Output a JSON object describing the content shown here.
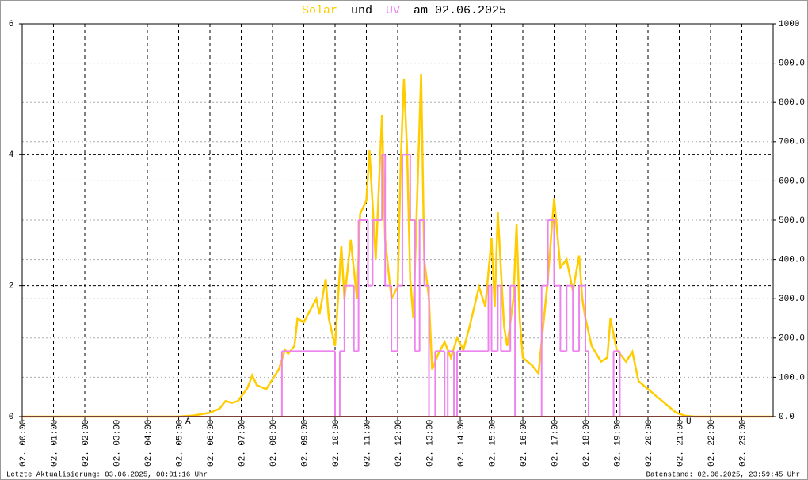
{
  "chart_data": {
    "type": "line",
    "title_join": "und",
    "title_suffix": "am 02.06.2025",
    "xlim": [
      0,
      24
    ],
    "xticks": [
      {
        "value": 0,
        "label": "02. 00:00"
      },
      {
        "value": 1,
        "label": "02. 01:00"
      },
      {
        "value": 2,
        "label": "02. 02:00"
      },
      {
        "value": 3,
        "label": "02. 03:00"
      },
      {
        "value": 4,
        "label": "02. 04:00"
      },
      {
        "value": 5,
        "label": "02. 05:00"
      },
      {
        "value": 6,
        "label": "02. 06:00"
      },
      {
        "value": 7,
        "label": "02. 07:00"
      },
      {
        "value": 8,
        "label": "02. 08:00"
      },
      {
        "value": 9,
        "label": "02. 09:00"
      },
      {
        "value": 10,
        "label": "02. 10:00"
      },
      {
        "value": 11,
        "label": "02. 11:00"
      },
      {
        "value": 12,
        "label": "02. 12:00"
      },
      {
        "value": 13,
        "label": "02. 13:00"
      },
      {
        "value": 14,
        "label": "02. 14:00"
      },
      {
        "value": 15,
        "label": "02. 15:00"
      },
      {
        "value": 16,
        "label": "02. 16:00"
      },
      {
        "value": 17,
        "label": "02. 17:00"
      },
      {
        "value": 18,
        "label": "02. 18:00"
      },
      {
        "value": 19,
        "label": "02. 19:00"
      },
      {
        "value": 20,
        "label": "02. 20:00"
      },
      {
        "value": 21,
        "label": "02. 21:00"
      },
      {
        "value": 22,
        "label": "02. 22:00"
      },
      {
        "value": 23,
        "label": "02. 23:00"
      }
    ],
    "ylim": [
      0,
      6
    ],
    "yticks": [
      0,
      2,
      4,
      6
    ],
    "y2lim": [
      0,
      1000
    ],
    "y2ticks": [
      {
        "value": 0,
        "label": "0.0"
      },
      {
        "value": 100,
        "label": "100.0"
      },
      {
        "value": 200,
        "label": "200.0"
      },
      {
        "value": 300,
        "label": "300.0"
      },
      {
        "value": 400,
        "label": "400.0"
      },
      {
        "value": 500,
        "label": "500.0"
      },
      {
        "value": 600,
        "label": "600.0"
      },
      {
        "value": 700,
        "label": "700.0"
      },
      {
        "value": 800,
        "label": "800.0"
      },
      {
        "value": 900,
        "label": "900.0"
      },
      1000
    ],
    "grid": true,
    "zero_color": "#f08070",
    "series": [
      {
        "name": "Solar",
        "color": "#ffcc00",
        "axis": "y2",
        "x": [
          0,
          5.0,
          5.5,
          6.0,
          6.3,
          6.5,
          6.7,
          6.9,
          7.2,
          7.35,
          7.5,
          7.8,
          8.0,
          8.2,
          8.4,
          8.5,
          8.7,
          8.8,
          9.0,
          9.2,
          9.4,
          9.5,
          9.7,
          9.8,
          10.0,
          10.2,
          10.3,
          10.5,
          10.7,
          10.8,
          11.0,
          11.1,
          11.3,
          11.5,
          11.6,
          11.8,
          12.0,
          12.1,
          12.2,
          12.3,
          12.4,
          12.5,
          12.6,
          12.75,
          12.85,
          13.0,
          13.1,
          13.3,
          13.5,
          13.7,
          13.9,
          14.1,
          14.3,
          14.6,
          14.8,
          15.0,
          15.1,
          15.2,
          15.4,
          15.5,
          15.7,
          15.8,
          15.9,
          16.0,
          16.3,
          16.5,
          16.8,
          17.0,
          17.2,
          17.4,
          17.6,
          17.8,
          17.9,
          18.0,
          18.2,
          18.5,
          18.7,
          18.8,
          19.0,
          19.3,
          19.5,
          19.7,
          20.0,
          20.3,
          20.6,
          20.9,
          21.2,
          21.5,
          24
        ],
        "values": [
          0,
          0,
          3,
          10,
          20,
          40,
          35,
          40,
          73,
          105,
          80,
          70,
          95,
          120,
          170,
          160,
          180,
          250,
          240,
          270,
          300,
          260,
          350,
          250,
          180,
          435,
          300,
          450,
          300,
          516,
          550,
          677,
          400,
          768,
          450,
          300,
          330,
          650,
          859,
          680,
          350,
          250,
          500,
          873,
          400,
          300,
          120,
          160,
          190,
          150,
          200,
          170,
          230,
          330,
          280,
          455,
          280,
          520,
          230,
          180,
          300,
          490,
          250,
          150,
          130,
          110,
          350,
          556,
          380,
          400,
          320,
          410,
          300,
          250,
          180,
          140,
          150,
          250,
          170,
          140,
          165,
          90,
          70,
          50,
          30,
          10,
          2,
          0,
          0
        ]
      },
      {
        "name": "UV",
        "color": "#ee82ee",
        "axis": "y",
        "x": [
          0,
          8.3,
          10.0,
          10.15,
          10.3,
          10.6,
          10.75,
          11.05,
          11.2,
          11.5,
          11.6,
          11.8,
          12.0,
          12.15,
          12.4,
          12.55,
          12.7,
          12.85,
          13.0,
          13.2,
          13.5,
          13.6,
          13.8,
          13.9,
          14.9,
          15.0,
          15.2,
          15.3,
          15.6,
          15.75,
          16.6,
          16.8,
          17.0,
          17.2,
          17.4,
          17.6,
          17.8,
          18.0,
          18.1,
          18.9,
          19.1,
          24
        ],
        "values": [
          0,
          1,
          0,
          1,
          2,
          1,
          3,
          2,
          3,
          4,
          2,
          1,
          2,
          4,
          3,
          1,
          3,
          2,
          0,
          1,
          0,
          1,
          0,
          1,
          2,
          1,
          2,
          1,
          2,
          0,
          2,
          3,
          2,
          1,
          2,
          1,
          2,
          1,
          0,
          1,
          0,
          0
        ]
      }
    ],
    "annotations": [
      {
        "x": 5.3,
        "text": "A",
        "color": "#cc0000"
      },
      {
        "x": 21.3,
        "text": "U",
        "color": "#cc0000"
      }
    ],
    "footer_left": "Letzte Aktualisierung: 03.06.2025, 00:01:16 Uhr",
    "footer_right": "Datenstand: 02.06.2025, 23:59:45 Uhr"
  }
}
